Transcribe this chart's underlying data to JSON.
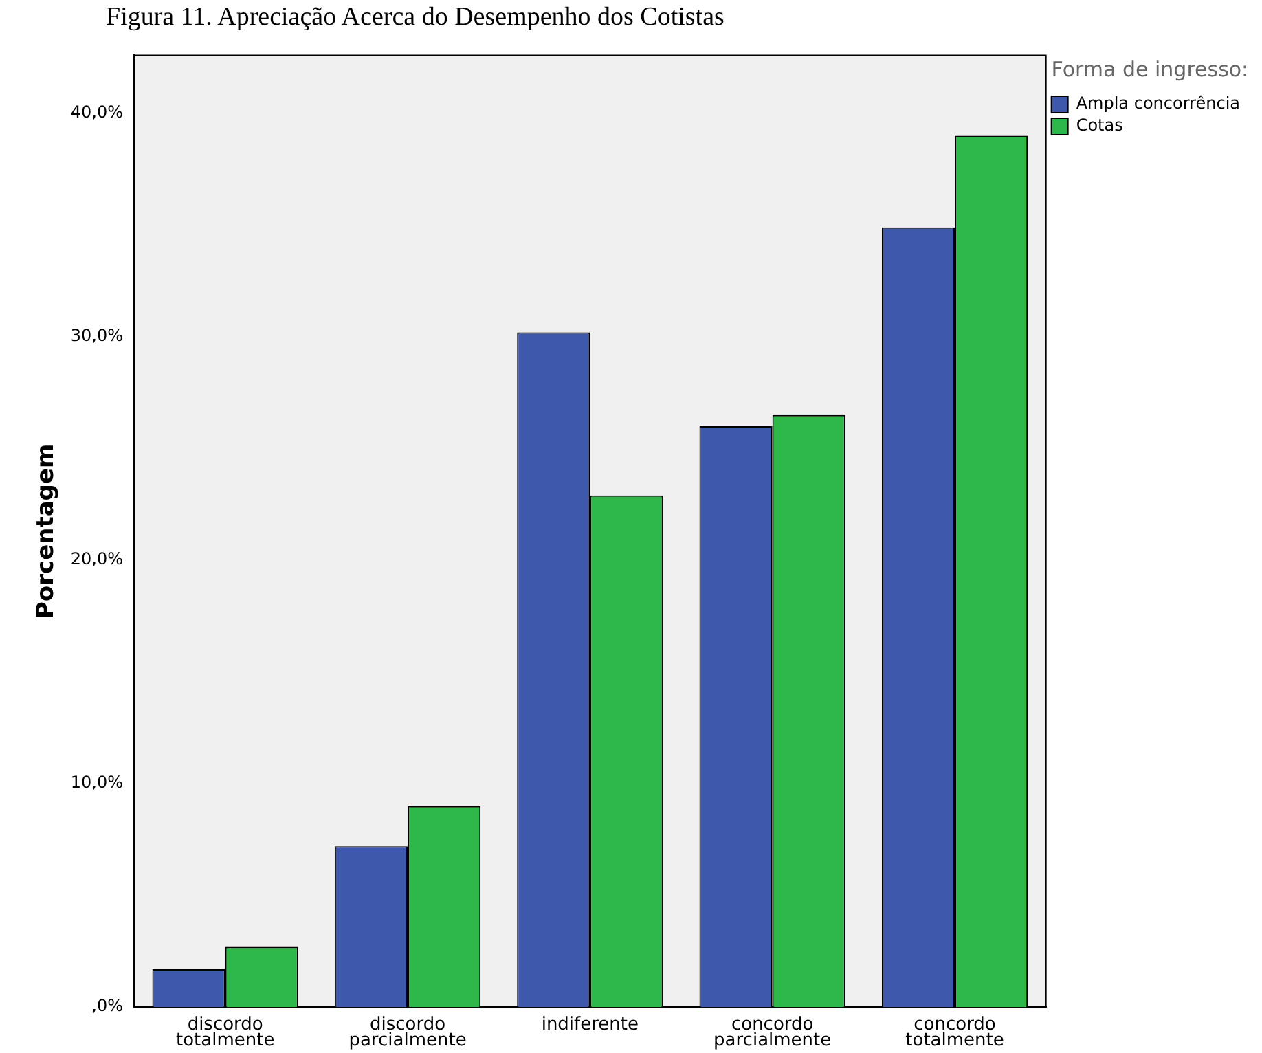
{
  "chart_data": {
    "type": "bar",
    "title": "Figura 11. Apreciação Acerca do Desempenho dos Cotistas",
    "ylabel": "Porcentagem",
    "legend_title": "Forma de ingresso:",
    "categories": [
      "discordo totalmente",
      "discordo parcialmente",
      "indiferente",
      "concordo parcialmente",
      "concordo totalmente"
    ],
    "series": [
      {
        "name": "Ampla concorrência",
        "color": "#3e58ac",
        "values": [
          1.7,
          7.2,
          30.2,
          26.0,
          34.9
        ]
      },
      {
        "name": "Cotas",
        "color": "#2eb84a",
        "values": [
          2.7,
          9.0,
          22.9,
          26.5,
          39.0
        ]
      }
    ],
    "ylim": [
      0,
      42.6
    ],
    "yticks": [
      {
        "value": 0,
        "label": ",0%"
      },
      {
        "value": 10,
        "label": "10,0%"
      },
      {
        "value": 20,
        "label": "20,0%"
      },
      {
        "value": 30,
        "label": "30,0%"
      },
      {
        "value": 40,
        "label": "40,0%"
      }
    ],
    "grid": false,
    "legend": "top right"
  }
}
